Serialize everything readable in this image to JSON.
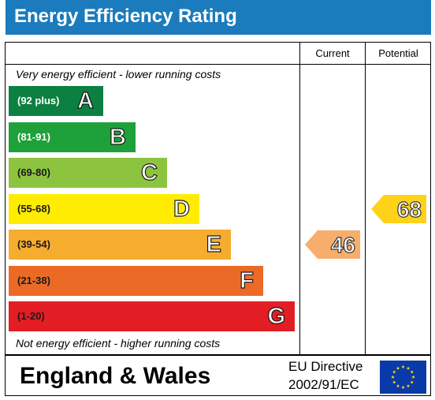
{
  "header": {
    "title": "Energy Efficiency Rating"
  },
  "columns": {
    "current_label": "Current",
    "potential_label": "Potential"
  },
  "notes": {
    "top": "Very energy efficient - lower running costs",
    "bottom": "Not energy efficient - higher running costs"
  },
  "footer": {
    "region": "England & Wales",
    "directive_line1": "EU Directive",
    "directive_line2": "2002/91/EC",
    "flag_icon": "eu-flag-icon"
  },
  "chart_data": {
    "type": "bar",
    "title": "Energy Efficiency Rating",
    "bands": [
      {
        "letter": "A",
        "range": "(92 plus)",
        "color": "#0c8040",
        "text_color": "#ffffff"
      },
      {
        "letter": "B",
        "range": "(81-91)",
        "color": "#1ea13a",
        "text_color": "#ffffff"
      },
      {
        "letter": "C",
        "range": "(69-80)",
        "color": "#8cc43f",
        "text_color": "#1a1a1a"
      },
      {
        "letter": "D",
        "range": "(55-68)",
        "color": "#ffec00",
        "text_color": "#1a1a1a"
      },
      {
        "letter": "E",
        "range": "(39-54)",
        "color": "#f6ac2f",
        "text_color": "#1a1a1a"
      },
      {
        "letter": "F",
        "range": "(21-38)",
        "color": "#eb6b26",
        "text_color": "#1a1a1a"
      },
      {
        "letter": "G",
        "range": "(1-20)",
        "color": "#e31d24",
        "text_color": "#1a1a1a"
      }
    ],
    "current": {
      "value": 46,
      "band": "E",
      "color": "#f7ae6c"
    },
    "potential": {
      "value": 68,
      "band": "D",
      "color": "#ffd21a"
    }
  }
}
